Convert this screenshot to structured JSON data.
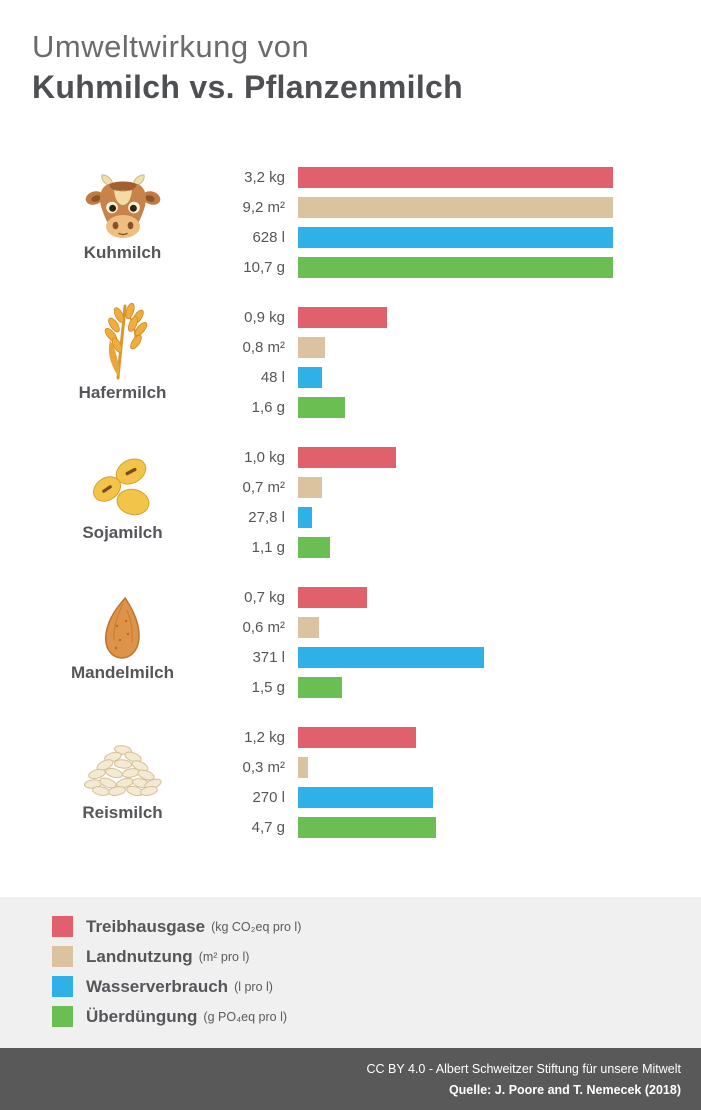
{
  "title": {
    "line1": "Umweltwirkung von",
    "line2": "Kuhmilch vs. Pflanzenmilch"
  },
  "colors": {
    "greenhouse": "#E0606C",
    "land_use": "#DCC3A0",
    "water": "#2FB0E7",
    "eutrophication": "#6ABE52",
    "text": "#55565A",
    "legend_background": "#F0F0F0",
    "footer_background": "#595959"
  },
  "chart_data": {
    "type": "bar",
    "orientation": "horizontal",
    "scale_note": "each metric scaled independently; Kuhmilch (max value) = full bar width",
    "categories": [
      "Kuhmilch",
      "Hafermilch",
      "Sojamilch",
      "Mandelmilch",
      "Reismilch"
    ],
    "icons": [
      "cow-icon",
      "oat-icon",
      "soybean-icon",
      "almond-icon",
      "rice-icon"
    ],
    "series": [
      {
        "name": "Treibhausgase",
        "unit": "kg CO₂eq pro l",
        "color": "#E0606C",
        "values": [
          3.2,
          0.9,
          1.0,
          0.7,
          1.2
        ],
        "display": [
          "3,2 kg",
          "0,9 kg",
          "1,0 kg",
          "0,7 kg",
          "1,2 kg"
        ]
      },
      {
        "name": "Landnutzung",
        "unit": "m² pro l",
        "color": "#DCC3A0",
        "values": [
          9.2,
          0.8,
          0.7,
          0.6,
          0.3
        ],
        "display": [
          "9,2 m²",
          "0,8 m²",
          "0,7 m²",
          "0,6 m²",
          "0,3 m²"
        ]
      },
      {
        "name": "Wasserverbrauch",
        "unit": "l pro l",
        "color": "#2FB0E7",
        "values": [
          628,
          48,
          27.8,
          371,
          270
        ],
        "display": [
          "628 l",
          "48 l",
          "27,8 l",
          "371 l",
          "270 l"
        ]
      },
      {
        "name": "Überdüngung",
        "unit": "g PO₄eq pro l",
        "color": "#6ABE52",
        "values": [
          10.7,
          1.6,
          1.1,
          1.5,
          4.7
        ],
        "display": [
          "10,7 g",
          "1,6 g",
          "1,1 g",
          "1,5 g",
          "4,7 g"
        ]
      }
    ]
  },
  "legend": {
    "items": [
      {
        "label": "Treibhausgase",
        "unit": "(kg CO₂eq pro l)",
        "color": "#E0606C"
      },
      {
        "label": "Landnutzung",
        "unit": "(m² pro l)",
        "color": "#DCC3A0"
      },
      {
        "label": "Wasserverbrauch",
        "unit": "(l pro l)",
        "color": "#2FB0E7"
      },
      {
        "label": "Überdüngung",
        "unit": "(g PO₄eq pro l)",
        "color": "#6ABE52"
      }
    ]
  },
  "footer": {
    "line1": "CC BY 4.0 -  Albert Schweitzer Stiftung für unsere Mitwelt",
    "line2": "Quelle: J. Poore and T. Nemecek (2018)"
  }
}
